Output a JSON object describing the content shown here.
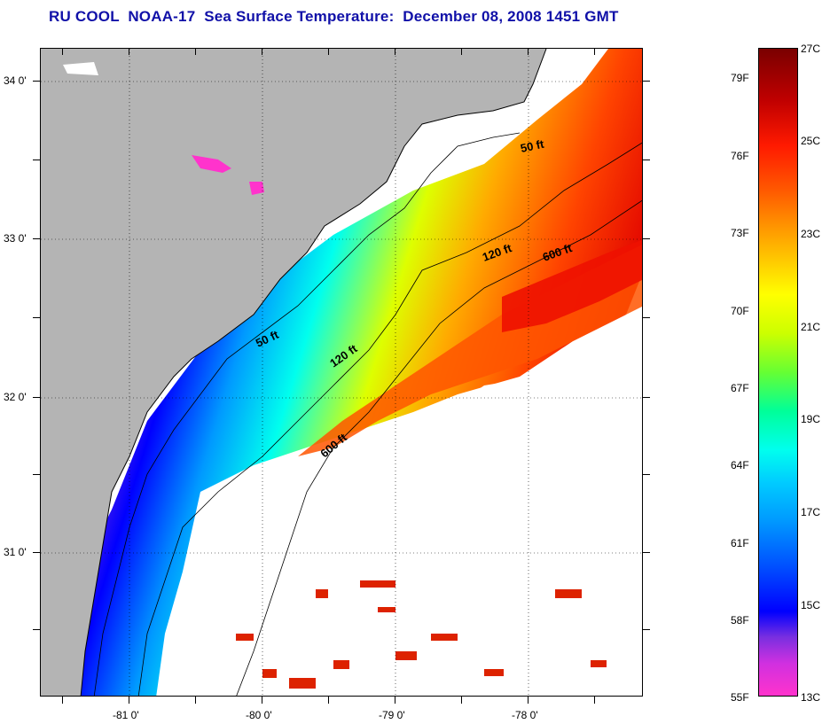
{
  "title": "RU COOL  NOAA-17  Sea Surface Temperature:  December 08, 2008 1451 GMT",
  "map": {
    "lat_labels": [
      "34 0'",
      "33 0'",
      "32 0'",
      "31 0'"
    ],
    "lon_labels": [
      "-81 0'",
      "-80 0'",
      "-79 0'",
      "-78 0'"
    ],
    "contour_labels": [
      "50 ft",
      "50 ft",
      "120 ft",
      "120 ft",
      "600 ft",
      "600 ft"
    ]
  },
  "colorbar": {
    "celsius_labels": [
      "27C",
      "25C",
      "23C",
      "21C",
      "19C",
      "17C",
      "15C",
      "13C"
    ],
    "fahrenheit_labels": [
      "79F",
      "76F",
      "73F",
      "70F",
      "67F",
      "64F",
      "61F",
      "58F",
      "55F"
    ],
    "colors": {
      "13C": "#ff33cc",
      "15C": "#0000ff",
      "17C": "#0099ff",
      "19C": "#00ffee",
      "21C": "#ddff00",
      "23C": "#ffaa00",
      "25C": "#ff2200",
      "27C": "#880000"
    }
  },
  "colors": {
    "land": "#b4b4b4",
    "title": "#1010a8",
    "no_data": "#ffffff"
  }
}
